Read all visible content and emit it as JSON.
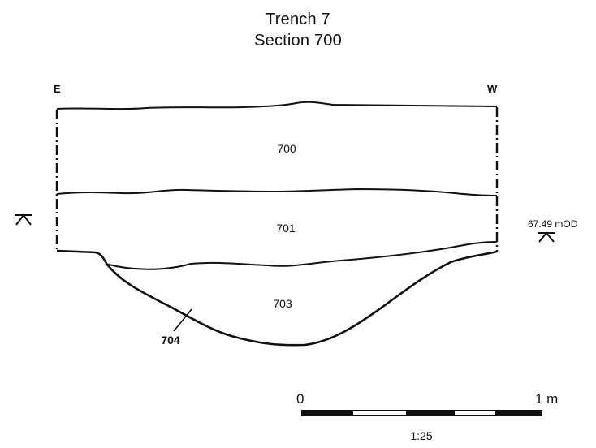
{
  "title": {
    "line1": "Trench 7",
    "line2": "Section 700"
  },
  "section": {
    "left_label": "E",
    "right_label": "W",
    "layers": [
      "700",
      "701",
      "703"
    ],
    "cut_label": "704",
    "datum_label": "67.49 mOD"
  },
  "scale": {
    "start_label": "0",
    "end_label": "1 m",
    "ratio_label": "1:25"
  },
  "colors": {
    "ink": "#111111",
    "background": "#ffffff"
  }
}
